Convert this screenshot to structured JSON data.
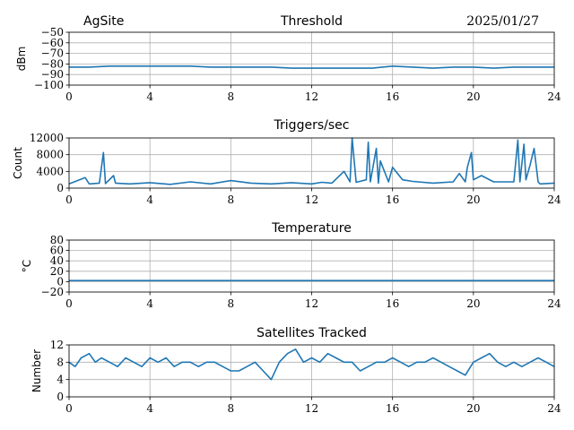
{
  "header": {
    "site": "AgSite",
    "date": "2025/01/27"
  },
  "colors": {
    "series": "#1f77b4",
    "grid": "#b0b0b0"
  },
  "chart_data": [
    {
      "type": "line",
      "title": "Threshold",
      "ylabel": "dBm",
      "xlim": [
        0,
        24
      ],
      "ylim": [
        -100,
        -50
      ],
      "xticks": [
        0,
        4,
        8,
        12,
        16,
        20,
        24
      ],
      "yticks": [
        -100,
        -90,
        -80,
        -70,
        -60,
        -50
      ],
      "ytick_labels": [
        "−100",
        "−90",
        "−80",
        "−70",
        "−60",
        "−50"
      ],
      "grid": true,
      "x": [
        0,
        1,
        2,
        3,
        4,
        5,
        6,
        7,
        8,
        9,
        10,
        11,
        12,
        13,
        14,
        15,
        15.5,
        16,
        17,
        18,
        19,
        20,
        21,
        22,
        23,
        24
      ],
      "y": [
        -83,
        -83,
        -82,
        -82,
        -82,
        -82,
        -82,
        -83,
        -83,
        -83,
        -83,
        -84,
        -84,
        -84,
        -84,
        -84,
        -83,
        -82,
        -83,
        -84,
        -83,
        -83,
        -84,
        -83,
        -83,
        -83
      ]
    },
    {
      "type": "line",
      "title": "Triggers/sec",
      "ylabel": "Count",
      "xlim": [
        0,
        24
      ],
      "ylim": [
        0,
        12000
      ],
      "xticks": [
        0,
        4,
        8,
        12,
        16,
        20,
        24
      ],
      "yticks": [
        0,
        4000,
        8000,
        12000
      ],
      "ytick_labels": [
        "0",
        "4000",
        "8000",
        "12000"
      ],
      "grid": true,
      "x": [
        0,
        0.8,
        1.0,
        1.5,
        1.7,
        1.8,
        2.2,
        2.3,
        3.0,
        4.0,
        5.0,
        6.0,
        7.0,
        8.0,
        9.0,
        10.0,
        11.0,
        12.0,
        12.5,
        13.0,
        13.6,
        13.9,
        14.0,
        14.2,
        14.7,
        14.8,
        14.9,
        15.2,
        15.3,
        15.4,
        15.8,
        16.0,
        16.5,
        17.0,
        18.0,
        19.0,
        19.3,
        19.6,
        19.7,
        19.9,
        20.0,
        20.4,
        21.0,
        22.0,
        22.2,
        22.3,
        22.5,
        22.6,
        22.8,
        23.0,
        23.2,
        23.3,
        24.0
      ],
      "y": [
        1000,
        2500,
        1000,
        1200,
        8500,
        1100,
        3000,
        1200,
        1000,
        1300,
        900,
        1500,
        1000,
        1800,
        1200,
        1000,
        1300,
        1000,
        1400,
        1200,
        4000,
        1500,
        12000,
        1400,
        2000,
        11000,
        1500,
        9500,
        1200,
        6500,
        1500,
        5000,
        2000,
        1600,
        1200,
        1500,
        3500,
        1500,
        5000,
        8500,
        2000,
        3000,
        1500,
        1500,
        11500,
        1500,
        10500,
        2000,
        5500,
        9500,
        1500,
        1000,
        1200
      ]
    },
    {
      "type": "line",
      "title": "Temperature",
      "ylabel": "°C",
      "xlim": [
        0,
        24
      ],
      "ylim": [
        -20,
        80
      ],
      "xticks": [
        0,
        4,
        8,
        12,
        16,
        20,
        24
      ],
      "yticks": [
        -20,
        0,
        20,
        40,
        60,
        80
      ],
      "ytick_labels": [
        "−20",
        "0",
        "20",
        "40",
        "60",
        "80"
      ],
      "grid": true,
      "x": [
        0,
        24
      ],
      "y": [
        2,
        2
      ]
    },
    {
      "type": "line",
      "title": "Satellites Tracked",
      "ylabel": "Number",
      "xlim": [
        0,
        24
      ],
      "ylim": [
        0,
        12
      ],
      "xticks": [
        0,
        4,
        8,
        12,
        16,
        20,
        24
      ],
      "yticks": [
        0,
        4,
        8,
        12
      ],
      "ytick_labels": [
        "0",
        "4",
        "8",
        "12"
      ],
      "grid": true,
      "x": [
        0,
        0.3,
        0.6,
        1.0,
        1.3,
        1.6,
        2.0,
        2.4,
        2.8,
        3.2,
        3.6,
        4.0,
        4.4,
        4.8,
        5.2,
        5.6,
        6.0,
        6.4,
        6.8,
        7.2,
        7.6,
        8.0,
        8.4,
        8.8,
        9.2,
        9.6,
        10.0,
        10.4,
        10.8,
        11.2,
        11.6,
        12.0,
        12.4,
        12.8,
        13.2,
        13.6,
        14.0,
        14.4,
        14.8,
        15.2,
        15.6,
        16.0,
        16.4,
        16.8,
        17.2,
        17.6,
        18.0,
        18.4,
        18.8,
        19.2,
        19.6,
        20.0,
        20.4,
        20.8,
        21.2,
        21.6,
        22.0,
        22.4,
        22.8,
        23.2,
        23.6,
        24.0
      ],
      "y": [
        8,
        7,
        9,
        10,
        8,
        9,
        8,
        7,
        9,
        8,
        7,
        9,
        8,
        9,
        7,
        8,
        8,
        7,
        8,
        8,
        7,
        6,
        6,
        7,
        8,
        6,
        4,
        8,
        10,
        11,
        8,
        9,
        8,
        10,
        9,
        8,
        8,
        6,
        7,
        8,
        8,
        9,
        8,
        7,
        8,
        8,
        9,
        8,
        7,
        6,
        5,
        8,
        9,
        10,
        8,
        7,
        8,
        7,
        8,
        9,
        8,
        7
      ]
    }
  ]
}
